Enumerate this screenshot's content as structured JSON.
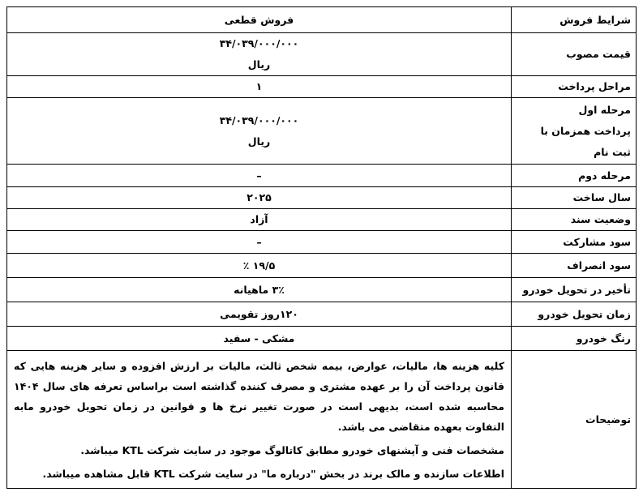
{
  "header": {
    "label": "شرایط فروش",
    "value": "فروش قطعی"
  },
  "rows": [
    {
      "label": [
        "قیمت مصوب"
      ],
      "value": [
        "۳۴/۰۳۹/۰۰۰/۰۰۰",
        "ریال"
      ]
    },
    {
      "label": [
        "مراحل پرداخت"
      ],
      "value": [
        "۱"
      ]
    },
    {
      "label": [
        "مرحله اول",
        "پرداخت  همزمان با",
        "ثبت نام"
      ],
      "value": [
        "۳۴/۰۳۹/۰۰۰/۰۰۰",
        "ریال"
      ]
    },
    {
      "label": [
        "مرحله دوم"
      ],
      "value": [
        "–"
      ]
    },
    {
      "label": [
        "سال ساخت"
      ],
      "value": [
        "۲۰۲۵"
      ]
    },
    {
      "label": [
        "وضعیت سند"
      ],
      "value": [
        "آزاد"
      ]
    },
    {
      "label": [
        "سود مشارکت"
      ],
      "value": [
        "–"
      ]
    },
    {
      "label": [
        "سود انصراف"
      ],
      "value": [
        "۱۹/۵ ٪"
      ]
    },
    {
      "label": [
        "تأخیر در تحویل خودرو"
      ],
      "value": [
        "۳٪ ماهیانه"
      ]
    },
    {
      "label": [
        "زمان تحویل خودرو"
      ],
      "value": [
        "۱۲۰روز تقویمی"
      ]
    },
    {
      "label": [
        "رنگ خودرو"
      ],
      "value": [
        "مشکی - سفید"
      ]
    }
  ],
  "notes": {
    "label": "توضیحات",
    "paragraphs": [
      "کلیه هزینه ها، مالیات، عوارض، بیمه شخص ثالث، مالیات بر ارزش افزوده و سایر هزینه هایی که قانون پرداخت آن را بر عهده مشتری و مصرف کننده گذاشته است براساس تعرفه های سال ۱۴۰۴ محاسبه شده است، بدیهی است در صورت تغییر نرخ ها و قوانین در زمان تحویل خودرو مابه التفاوت بعهده متقاضی می باشد.",
      "مشخصات فنی و آپشنهای خودرو مطابق کاتالوگ موجود در سایت شرکت KTL میباشد.",
      "اطلاعات سازنده و مالک برند در بخش \"درباره ما\" در سایت  شرکت KTL قابل مشاهده میباشد."
    ]
  }
}
